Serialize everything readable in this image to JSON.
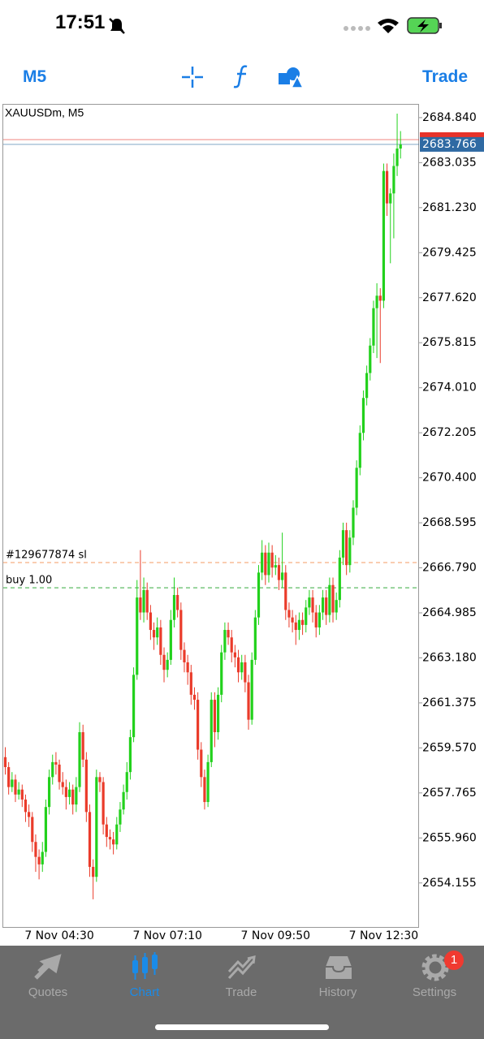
{
  "status_bar": {
    "time": "17:51"
  },
  "toolbar": {
    "timeframe": "M5",
    "trade": "Trade"
  },
  "chart_data": {
    "type": "candlestick",
    "symbol": "XAUUSDm, M5",
    "categories": [
      null,
      null,
      null,
      null,
      null,
      null,
      null,
      null,
      null,
      null,
      null,
      null,
      null,
      null,
      null,
      null,
      "7 Nov 04:30",
      null,
      null,
      null,
      null,
      null,
      null,
      null,
      null,
      null,
      null,
      null,
      null,
      null,
      null,
      null,
      null,
      null,
      null,
      null,
      null,
      null,
      null,
      null,
      null,
      null,
      null,
      null,
      null,
      null,
      null,
      null,
      "7 Nov 07:10",
      null,
      null,
      null,
      null,
      null,
      null,
      null,
      null,
      null,
      null,
      null,
      null,
      null,
      null,
      null,
      null,
      null,
      null,
      null,
      null,
      null,
      null,
      null,
      null,
      null,
      null,
      null,
      null,
      null,
      null,
      null,
      "7 Nov 09:50",
      null,
      null,
      null,
      null,
      null,
      null,
      null,
      null,
      null,
      null,
      null,
      null,
      null,
      null,
      null,
      null,
      null,
      null,
      null,
      null,
      null,
      null,
      null,
      null,
      null,
      null,
      null,
      null,
      null,
      null,
      null,
      "7 Nov 12:30",
      null,
      null,
      null,
      null,
      null
    ],
    "ohlc": [
      [
        2659.2,
        2659.6,
        2658.5,
        2658.8
      ],
      [
        2658.8,
        2659.0,
        2657.7,
        2658.0
      ],
      [
        2658.0,
        2658.6,
        2657.8,
        2658.3
      ],
      [
        2658.3,
        2658.5,
        2657.4,
        2657.7
      ],
      [
        2657.7,
        2658.2,
        2657.5,
        2657.9
      ],
      [
        2657.9,
        2658.1,
        2657.2,
        2657.5
      ],
      [
        2657.5,
        2657.7,
        2656.6,
        2657.0
      ],
      [
        2657.0,
        2657.3,
        2656.4,
        2656.8
      ],
      [
        2656.8,
        2657.0,
        2655.4,
        2655.8
      ],
      [
        2655.8,
        2656.1,
        2654.6,
        2655.2
      ],
      [
        2655.2,
        2655.5,
        2654.3,
        2654.9
      ],
      [
        2654.9,
        2655.8,
        2654.6,
        2655.4
      ],
      [
        2655.4,
        2657.5,
        2655.2,
        2657.2
      ],
      [
        2657.2,
        2658.7,
        2656.9,
        2658.4
      ],
      [
        2658.4,
        2659.3,
        2658.1,
        2659.0
      ],
      [
        2659.0,
        2659.4,
        2658.5,
        2658.9
      ],
      [
        2658.9,
        2659.1,
        2657.9,
        2658.2
      ],
      [
        2658.2,
        2658.6,
        2657.7,
        2658.0
      ],
      [
        2658.0,
        2658.3,
        2657.1,
        2657.6
      ],
      [
        2657.6,
        2658.2,
        2657.3,
        2657.9
      ],
      [
        2657.9,
        2658.1,
        2656.9,
        2657.3
      ],
      [
        2657.3,
        2658.4,
        2657.0,
        2658.0
      ],
      [
        2658.0,
        2660.6,
        2657.8,
        2660.2
      ],
      [
        2660.2,
        2660.5,
        2658.8,
        2659.1
      ],
      [
        2659.1,
        2659.4,
        2656.6,
        2657.0
      ],
      [
        2657.0,
        2657.3,
        2654.4,
        2654.8
      ],
      [
        2654.8,
        2655.1,
        2653.5,
        2654.4
      ],
      [
        2654.4,
        2658.7,
        2654.2,
        2658.4
      ],
      [
        2658.4,
        2658.6,
        2657.8,
        2658.2
      ],
      [
        2658.2,
        2658.4,
        2656.1,
        2656.5
      ],
      [
        2656.5,
        2656.8,
        2655.6,
        2656.0
      ],
      [
        2656.0,
        2656.3,
        2655.5,
        2655.9
      ],
      [
        2655.9,
        2656.2,
        2655.3,
        2655.7
      ],
      [
        2655.7,
        2656.8,
        2655.5,
        2656.5
      ],
      [
        2656.5,
        2657.4,
        2656.2,
        2657.1
      ],
      [
        2657.1,
        2658.1,
        2656.9,
        2657.8
      ],
      [
        2657.8,
        2659.0,
        2657.5,
        2658.6
      ],
      [
        2658.6,
        2660.3,
        2658.3,
        2660.0
      ],
      [
        2660.0,
        2662.8,
        2659.8,
        2662.5
      ],
      [
        2662.5,
        2666.3,
        2662.3,
        2665.6
      ],
      [
        2665.6,
        2667.5,
        2664.7,
        2665.0
      ],
      [
        2665.0,
        2666.4,
        2664.6,
        2665.9
      ],
      [
        2665.9,
        2666.2,
        2664.7,
        2665.0
      ],
      [
        2665.0,
        2665.3,
        2663.9,
        2664.3
      ],
      [
        2664.3,
        2664.6,
        2663.5,
        2664.0
      ],
      [
        2664.0,
        2664.8,
        2663.7,
        2664.4
      ],
      [
        2664.4,
        2664.7,
        2662.9,
        2663.3
      ],
      [
        2663.3,
        2663.6,
        2662.2,
        2662.7
      ],
      [
        2662.7,
        2663.4,
        2662.4,
        2663.1
      ],
      [
        2663.1,
        2665.1,
        2662.9,
        2664.7
      ],
      [
        2664.7,
        2666.4,
        2664.4,
        2665.7
      ],
      [
        2665.7,
        2666.0,
        2664.8,
        2665.1
      ],
      [
        2665.1,
        2665.4,
        2663.1,
        2663.5
      ],
      [
        2663.5,
        2663.8,
        2662.6,
        2663.0
      ],
      [
        2663.0,
        2663.3,
        2662.1,
        2662.6
      ],
      [
        2662.6,
        2662.9,
        2661.3,
        2661.7
      ],
      [
        2661.7,
        2662.0,
        2661.1,
        2661.5
      ],
      [
        2661.5,
        2661.8,
        2659.1,
        2659.5
      ],
      [
        2659.5,
        2659.8,
        2658.0,
        2658.4
      ],
      [
        2658.4,
        2658.7,
        2657.1,
        2657.4
      ],
      [
        2657.4,
        2659.3,
        2657.2,
        2659.0
      ],
      [
        2659.0,
        2661.8,
        2658.8,
        2661.5
      ],
      [
        2661.5,
        2661.8,
        2659.6,
        2660.2
      ],
      [
        2660.2,
        2662.0,
        2659.9,
        2661.7
      ],
      [
        2661.7,
        2663.7,
        2661.4,
        2663.4
      ],
      [
        2663.4,
        2664.6,
        2663.1,
        2664.3
      ],
      [
        2664.3,
        2664.6,
        2663.7,
        2664.0
      ],
      [
        2664.0,
        2664.3,
        2663.0,
        2663.4
      ],
      [
        2663.4,
        2663.7,
        2662.8,
        2663.2
      ],
      [
        2663.2,
        2663.5,
        2662.2,
        2662.6
      ],
      [
        2662.6,
        2663.3,
        2662.3,
        2663.0
      ],
      [
        2663.0,
        2663.3,
        2661.8,
        2662.2
      ],
      [
        2662.2,
        2662.5,
        2660.3,
        2660.7
      ],
      [
        2660.7,
        2663.4,
        2660.5,
        2663.1
      ],
      [
        2663.1,
        2665.1,
        2662.9,
        2664.8
      ],
      [
        2664.8,
        2666.9,
        2664.5,
        2666.6
      ],
      [
        2666.6,
        2667.9,
        2666.3,
        2667.4
      ],
      [
        2667.4,
        2667.7,
        2666.1,
        2666.5
      ],
      [
        2666.5,
        2667.8,
        2666.2,
        2667.4
      ],
      [
        2667.4,
        2667.7,
        2666.4,
        2666.8
      ],
      [
        2666.8,
        2667.3,
        2666.5,
        2666.9
      ],
      [
        2666.9,
        2667.2,
        2665.9,
        2666.3
      ],
      [
        2666.3,
        2668.2,
        2666.0,
        2666.6
      ],
      [
        2666.6,
        2666.9,
        2664.7,
        2665.1
      ],
      [
        2665.1,
        2665.4,
        2664.4,
        2664.8
      ],
      [
        2664.8,
        2665.1,
        2664.2,
        2664.6
      ],
      [
        2664.6,
        2664.9,
        2663.7,
        2664.3
      ],
      [
        2664.3,
        2665.0,
        2663.9,
        2664.7
      ],
      [
        2664.7,
        2665.0,
        2664.1,
        2664.5
      ],
      [
        2664.5,
        2665.5,
        2664.2,
        2665.2
      ],
      [
        2665.2,
        2665.9,
        2664.9,
        2665.6
      ],
      [
        2665.6,
        2665.9,
        2664.6,
        2665.0
      ],
      [
        2665.0,
        2665.3,
        2664.0,
        2664.4
      ],
      [
        2664.4,
        2665.3,
        2664.1,
        2665.0
      ],
      [
        2665.0,
        2665.9,
        2664.7,
        2665.6
      ],
      [
        2665.6,
        2665.9,
        2664.5,
        2664.9
      ],
      [
        2664.9,
        2666.4,
        2664.6,
        2666.1
      ],
      [
        2666.1,
        2666.4,
        2664.6,
        2665.0
      ],
      [
        2665.0,
        2665.8,
        2664.7,
        2665.5
      ],
      [
        2665.5,
        2667.5,
        2665.2,
        2667.2
      ],
      [
        2667.2,
        2668.6,
        2666.9,
        2668.3
      ],
      [
        2668.3,
        2668.6,
        2666.5,
        2666.9
      ],
      [
        2666.9,
        2668.3,
        2666.6,
        2668.0
      ],
      [
        2668.0,
        2669.5,
        2667.7,
        2669.2
      ],
      [
        2669.2,
        2671.1,
        2668.9,
        2670.8
      ],
      [
        2670.8,
        2672.5,
        2670.5,
        2672.2
      ],
      [
        2672.2,
        2673.9,
        2671.9,
        2673.6
      ],
      [
        2673.6,
        2674.9,
        2673.3,
        2674.6
      ],
      [
        2674.6,
        2676.0,
        2674.3,
        2675.7
      ],
      [
        2675.7,
        2677.5,
        2675.4,
        2677.2
      ],
      [
        2677.2,
        2678.2,
        2675.2,
        2677.7
      ],
      [
        2677.7,
        2678.0,
        2675.0,
        2677.5
      ],
      [
        2677.5,
        2683.0,
        2677.2,
        2682.7
      ],
      [
        2682.7,
        2683.0,
        2680.9,
        2681.4
      ],
      [
        2681.4,
        2682.0,
        2679.0,
        2681.8
      ],
      [
        2681.8,
        2683.4,
        2680.0,
        2682.9
      ],
      [
        2682.9,
        2685.0,
        2682.5,
        2683.6
      ],
      [
        2683.6,
        2684.3,
        2683.2,
        2683.766
      ]
    ],
    "up_color": "#22d11c",
    "down_color": "#ea3b2a",
    "ylim": [
      2652.39,
      2685.39
    ],
    "yticks": [
      {
        "value": 2684.84,
        "label": "2684.840"
      },
      2683.035,
      {
        "value": 2681.23,
        "label": "2681.230"
      },
      2679.425,
      {
        "value": 2677.62,
        "label": "2677.620"
      },
      2675.815,
      {
        "value": 2674.01,
        "label": "2674.010"
      },
      2672.205,
      {
        "value": 2670.4,
        "label": "2670.400"
      },
      2668.595,
      {
        "value": 2666.79,
        "label": "2666.790"
      },
      2664.985,
      {
        "value": 2663.18,
        "label": "2663.180"
      },
      2661.375,
      {
        "value": 2659.57,
        "label": "2659.570"
      },
      2657.765,
      {
        "value": 2655.96,
        "label": "2655.960"
      },
      2654.155
    ],
    "bid": 2683.766,
    "bid_color": "#2f6aa3",
    "ask": 2683.96,
    "ask_color": "#e8332a",
    "levels": [
      {
        "label": "#129677874 sl",
        "value": 2667.0,
        "color": "#f5a673"
      },
      {
        "label": "buy 1.00",
        "value": 2665.99,
        "color": "#5dbb63"
      }
    ]
  },
  "tab_bar": {
    "tabs": [
      "Quotes",
      "Chart",
      "Trade",
      "History",
      "Settings"
    ],
    "active": 1,
    "badge": 1
  }
}
